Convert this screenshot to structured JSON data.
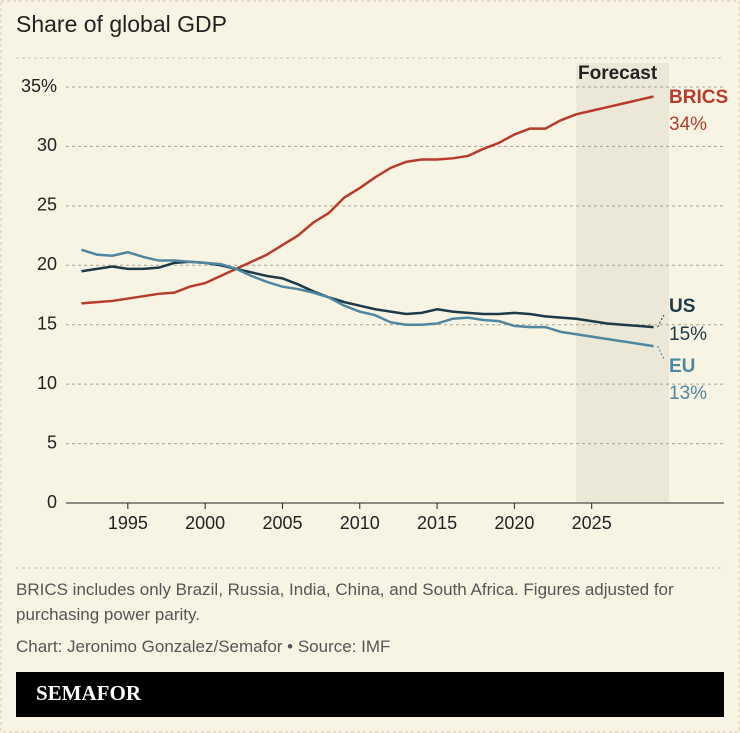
{
  "chart_data": {
    "type": "line",
    "title": "Share of global GDP",
    "x": [
      1992,
      1993,
      1994,
      1995,
      1996,
      1997,
      1998,
      1999,
      2000,
      2001,
      2002,
      2003,
      2004,
      2005,
      2006,
      2007,
      2008,
      2009,
      2010,
      2011,
      2012,
      2013,
      2014,
      2015,
      2016,
      2017,
      2018,
      2019,
      2020,
      2021,
      2022,
      2023,
      2024,
      2025,
      2026,
      2027,
      2028,
      2029
    ],
    "series": [
      {
        "name": "BRICS",
        "label": "34%",
        "color": "#b83b2b",
        "values": [
          16.8,
          16.9,
          17.0,
          17.2,
          17.4,
          17.6,
          17.7,
          18.2,
          18.5,
          19.1,
          19.7,
          20.3,
          20.9,
          21.7,
          22.5,
          23.6,
          24.4,
          25.7,
          26.5,
          27.4,
          28.2,
          28.7,
          28.9,
          28.9,
          29.0,
          29.2,
          29.8,
          30.3,
          31.0,
          31.5,
          31.5,
          32.2,
          32.7,
          33.0,
          33.3,
          33.6,
          33.9,
          34.2
        ]
      },
      {
        "name": "US",
        "label": "15%",
        "color": "#1c3a48",
        "values": [
          19.5,
          19.7,
          19.9,
          19.7,
          19.7,
          19.8,
          20.2,
          20.3,
          20.2,
          20.0,
          19.7,
          19.4,
          19.1,
          18.9,
          18.4,
          17.8,
          17.3,
          16.9,
          16.6,
          16.3,
          16.1,
          15.9,
          16.0,
          16.3,
          16.1,
          16.0,
          15.9,
          15.9,
          16.0,
          15.9,
          15.7,
          15.6,
          15.5,
          15.3,
          15.1,
          15.0,
          14.9,
          14.8
        ]
      },
      {
        "name": "EU",
        "label": "13%",
        "color": "#4f86a0",
        "values": [
          21.3,
          20.9,
          20.8,
          21.1,
          20.7,
          20.4,
          20.4,
          20.3,
          20.2,
          20.1,
          19.7,
          19.1,
          18.6,
          18.2,
          18.0,
          17.7,
          17.3,
          16.6,
          16.1,
          15.8,
          15.2,
          15.0,
          15.0,
          15.1,
          15.5,
          15.6,
          15.4,
          15.3,
          14.9,
          14.8,
          14.8,
          14.4,
          14.2,
          14.0,
          13.8,
          13.6,
          13.4,
          13.2
        ]
      }
    ],
    "forecast": {
      "label": "Forecast",
      "range": [
        2024,
        2030
      ],
      "color": "#ebe8d8"
    },
    "xlim": [
      1991,
      2030
    ],
    "xticks": [
      1995,
      2000,
      2005,
      2010,
      2015,
      2020,
      2025
    ],
    "ylim": [
      0,
      35
    ],
    "yticks": [
      0,
      5,
      10,
      15,
      20,
      25,
      30,
      {
        "value": 35,
        "label": "35%"
      }
    ],
    "grid": true,
    "note": "BRICS includes only Brazil, Russia, India, China, and South Africa. Figures adjusted for purchasing power parity.",
    "credit": "Chart: Jeronimo Gonzalez/Semafor • Source: IMF",
    "brand": "SEMAFOR"
  }
}
